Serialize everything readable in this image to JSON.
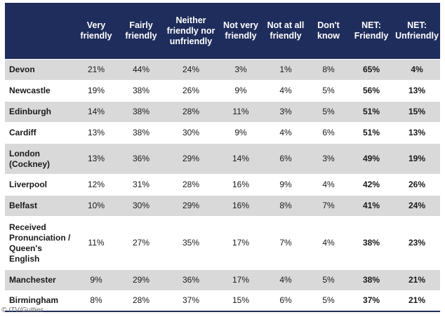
{
  "headers": [
    "",
    "Very friendly",
    "Fairly friendly",
    "Neither friendly nor unfriendly",
    "Not very friendly",
    "Not at all friendly",
    "Don't know",
    "NET: Friendly",
    "NET: Unfriendly"
  ],
  "rows": [
    {
      "label": "Devon",
      "values": [
        "21%",
        "44%",
        "24%",
        "3%",
        "1%",
        "8%",
        "65%",
        "4%"
      ]
    },
    {
      "label": "Newcastle",
      "values": [
        "19%",
        "38%",
        "26%",
        "9%",
        "4%",
        "5%",
        "56%",
        "13%"
      ]
    },
    {
      "label": "Edinburgh",
      "values": [
        "14%",
        "38%",
        "28%",
        "11%",
        "3%",
        "5%",
        "51%",
        "15%"
      ]
    },
    {
      "label": "Cardiff",
      "values": [
        "13%",
        "38%",
        "30%",
        "9%",
        "4%",
        "6%",
        "51%",
        "13%"
      ]
    },
    {
      "label": "London (Cockney)",
      "values": [
        "13%",
        "36%",
        "29%",
        "14%",
        "6%",
        "3%",
        "49%",
        "19%"
      ]
    },
    {
      "label": "Liverpool",
      "values": [
        "12%",
        "31%",
        "28%",
        "16%",
        "9%",
        "4%",
        "42%",
        "26%"
      ]
    },
    {
      "label": "Belfast",
      "values": [
        "10%",
        "30%",
        "29%",
        "16%",
        "8%",
        "7%",
        "41%",
        "24%"
      ]
    },
    {
      "label": "Received Pronunciation / Queen's English",
      "values": [
        "11%",
        "27%",
        "35%",
        "17%",
        "7%",
        "4%",
        "38%",
        "23%"
      ]
    },
    {
      "label": "Manchester",
      "values": [
        "9%",
        "29%",
        "36%",
        "17%",
        "4%",
        "5%",
        "38%",
        "21%"
      ]
    },
    {
      "label": "Birmingham",
      "values": [
        "8%",
        "28%",
        "37%",
        "15%",
        "6%",
        "5%",
        "37%",
        "21%"
      ]
    }
  ],
  "credit": "© ITV/Gutties",
  "colors": {
    "header_bg": "#1f2d5c",
    "header_text": "#ffffff",
    "row_shade": "#d9d9d9"
  }
}
